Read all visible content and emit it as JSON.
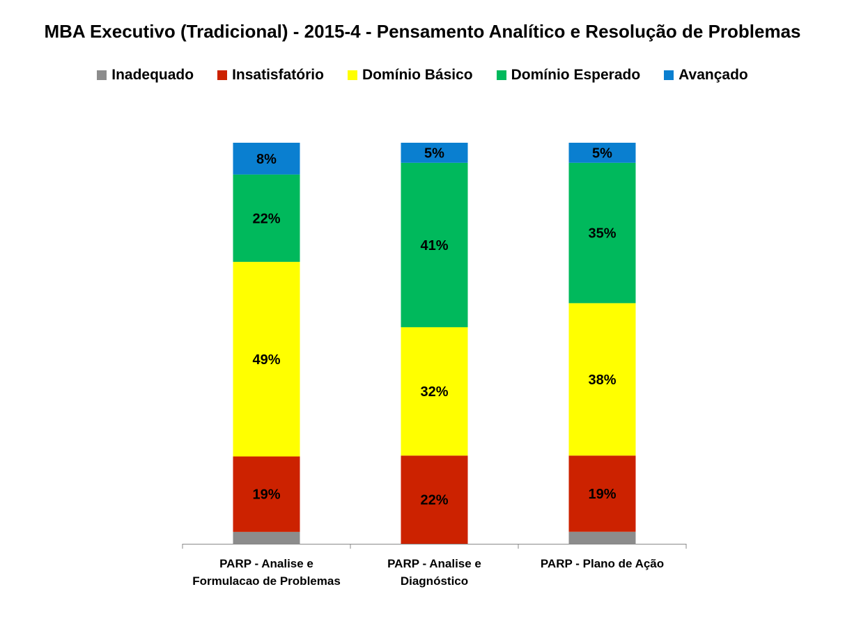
{
  "chart_data": {
    "type": "bar",
    "stacked": true,
    "percent_stacked": true,
    "title": "MBA Executivo (Tradicional) - 2015-4 - Pensamento Analítico e Resolução de Problemas",
    "categories": [
      [
        "PARP - Analise e",
        "Formulacao de Problemas"
      ],
      [
        "PARP - Analise e",
        "Diagnóstico"
      ],
      [
        "PARP - Plano de Ação"
      ]
    ],
    "series": [
      {
        "name": "Inadequado",
        "color": "#8c8c8c",
        "values": [
          3,
          0,
          3
        ],
        "labels": [
          "",
          "",
          ""
        ]
      },
      {
        "name": "Insatisfatório",
        "color": "#cc2200",
        "values": [
          19,
          22,
          19
        ],
        "labels": [
          "19%",
          "22%",
          "19%"
        ]
      },
      {
        "name": "Domínio Básico",
        "color": "#ffff00",
        "values": [
          49,
          32,
          38
        ],
        "labels": [
          "49%",
          "32%",
          "38%"
        ]
      },
      {
        "name": "Domínio Esperado",
        "color": "#00b95c",
        "values": [
          22,
          41,
          35
        ],
        "labels": [
          "22%",
          "41%",
          "35%"
        ]
      },
      {
        "name": "Avançado",
        "color": "#0a7fd0",
        "values": [
          8,
          5,
          5
        ],
        "labels": [
          "8%",
          "5%",
          "5%"
        ]
      }
    ],
    "ylim": [
      0,
      100
    ],
    "legend_position": "top",
    "grid": false
  }
}
